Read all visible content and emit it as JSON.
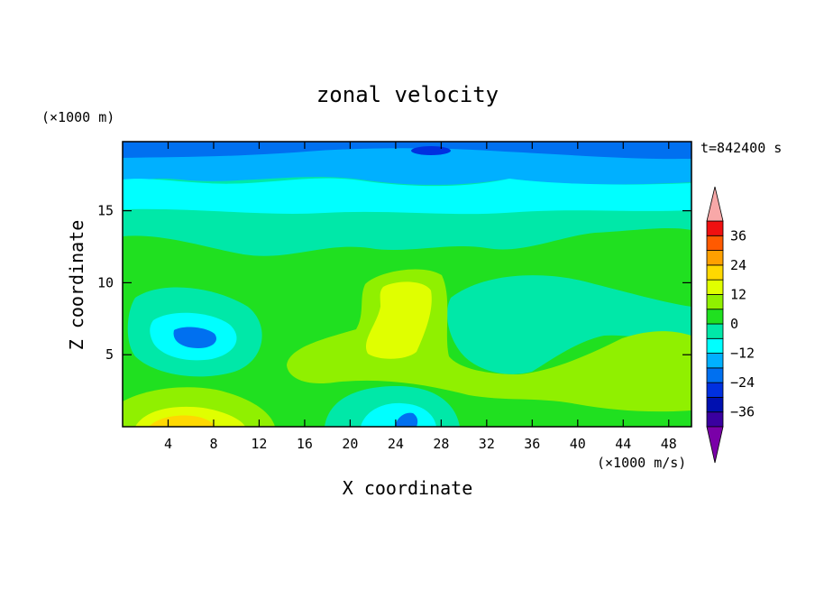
{
  "chart_data": {
    "type": "heatmap",
    "title": "zonal velocity",
    "xlabel": "X coordinate",
    "ylabel": "Z coordinate",
    "x_units": "(×1000 m/s)",
    "y_units": "(×1000 m)",
    "time_label": "t=842400 s",
    "xlim": [
      0,
      50
    ],
    "ylim": [
      0,
      19.8
    ],
    "x_ticks": [
      4,
      8,
      12,
      16,
      20,
      24,
      28,
      32,
      36,
      40,
      44,
      48
    ],
    "y_ticks": [
      5,
      10,
      15
    ],
    "colorbar": {
      "levels": [
        -42,
        -36,
        -30,
        -24,
        -18,
        -12,
        -6,
        0,
        6,
        12,
        18,
        24,
        30,
        36,
        42
      ],
      "tick_values": [
        36,
        24,
        12,
        0,
        -12,
        -24,
        -36
      ],
      "tick_labels": [
        "36",
        "24",
        "12",
        "0",
        "−12",
        "−24",
        "−36"
      ],
      "colors": [
        "#7a00a8",
        "#3a00a0",
        "#0010b0",
        "#0030e0",
        "#0070f0",
        "#00b0ff",
        "#00ffff",
        "#00e8a8",
        "#20e020",
        "#90f000",
        "#e0ff00",
        "#ffd800",
        "#ffa000",
        "#ff5a00",
        "#f01010",
        "#f8a8a8"
      ],
      "extend": "both"
    },
    "grid": false
  }
}
